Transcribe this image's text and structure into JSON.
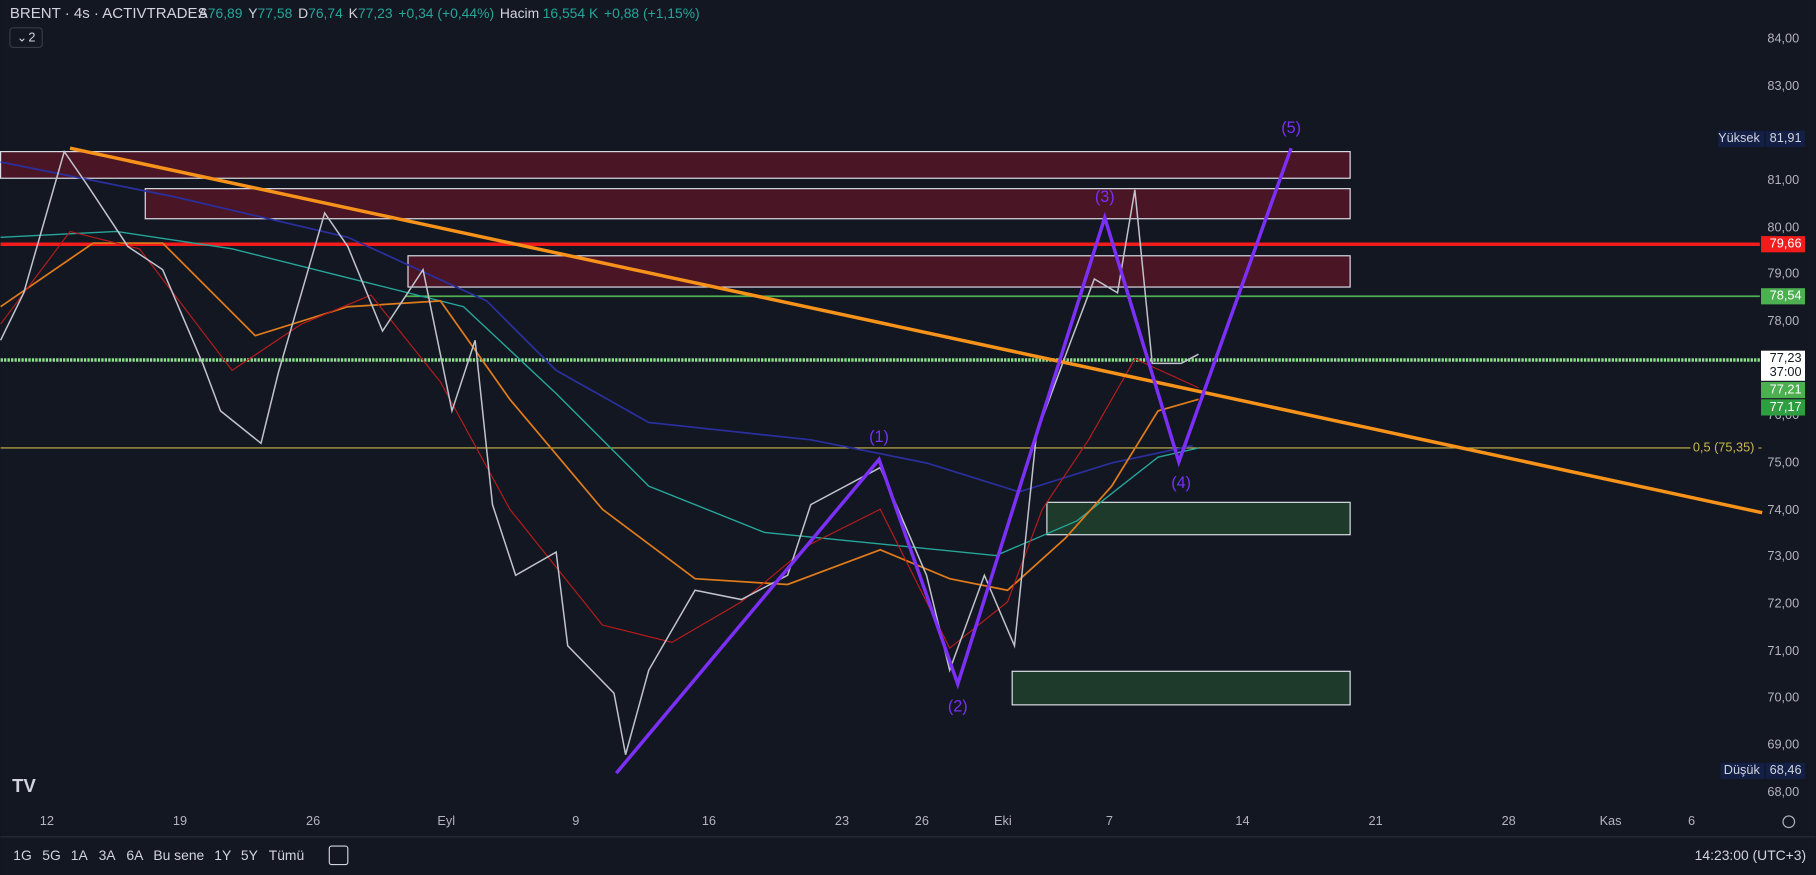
{
  "header": {
    "symbol": "BRENT · 4s · ACTIVTRADES",
    "ohlc": [
      {
        "key": "A",
        "value": "76,89"
      },
      {
        "key": "Y",
        "value": "77,58"
      },
      {
        "key": "D",
        "value": "76,74"
      },
      {
        "key": "K",
        "value": "77,23"
      }
    ],
    "change": "+0,34 (+0,44%)",
    "volume_label": "Hacim",
    "volume": "16,554 K",
    "volume_change": "+0,88 (+1,15%)",
    "indicators": "2"
  },
  "price_axis": [
    "84,00",
    "83,00",
    "81,00",
    "80,00",
    "79,00",
    "78,00",
    "76,00",
    "75,00",
    "74,00",
    "73,00",
    "72,00",
    "71,00",
    "70,00",
    "69,00",
    "68,00"
  ],
  "price_labels": {
    "high_label": "Yüksek",
    "high": "81,91",
    "red_line": "79,66",
    "green_line": "78,54",
    "last": "77,23",
    "countdown": "37:00",
    "ma1": "77,21",
    "ma2": "77,17",
    "low_label": "Düşük",
    "low": "68,46"
  },
  "fib_label": "0,5 (75,35) -",
  "waves": [
    "(1)",
    "(2)",
    "(3)",
    "(4)",
    "(5)"
  ],
  "time_axis": [
    "12",
    "19",
    "26",
    "Eyl",
    "9",
    "16",
    "23",
    "26",
    "Eki",
    "7",
    "14",
    "21",
    "28",
    "Kas",
    "6"
  ],
  "toolbar": {
    "ranges": [
      "1G",
      "5G",
      "1A",
      "3A",
      "6A",
      "Bu sene",
      "1Y",
      "5Y",
      "Tümü"
    ],
    "clock": "14:23:00 (UTC+3)"
  }
}
